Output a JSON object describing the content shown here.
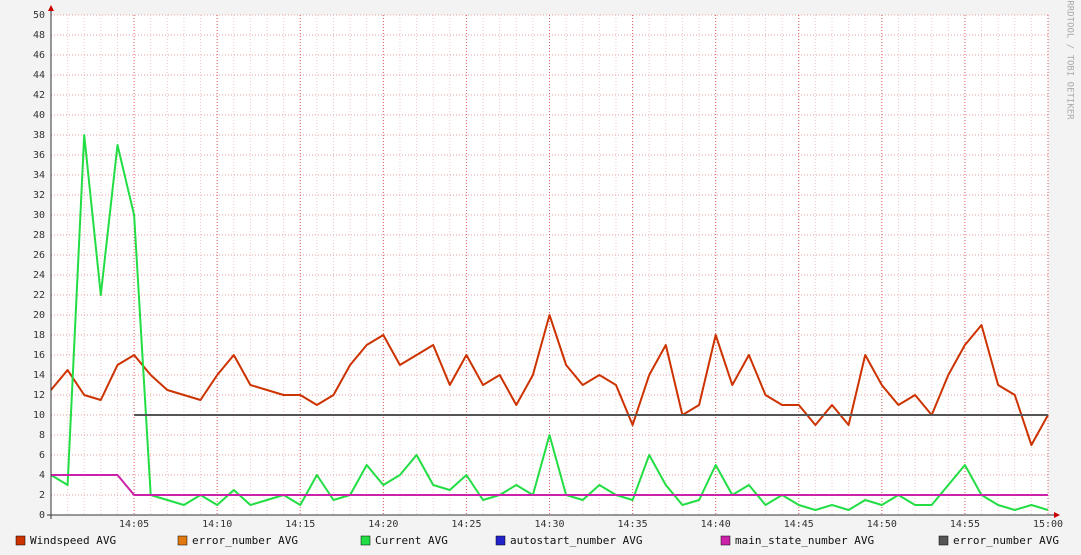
{
  "chart_data": {
    "type": "line",
    "watermark": "RRDTOOL / TOBI OETIKER",
    "x": [
      "14:00",
      "14:01",
      "14:02",
      "14:03",
      "14:04",
      "14:05",
      "14:06",
      "14:07",
      "14:08",
      "14:09",
      "14:10",
      "14:11",
      "14:12",
      "14:13",
      "14:14",
      "14:15",
      "14:16",
      "14:17",
      "14:18",
      "14:19",
      "14:20",
      "14:21",
      "14:22",
      "14:23",
      "14:24",
      "14:25",
      "14:26",
      "14:27",
      "14:28",
      "14:29",
      "14:30",
      "14:31",
      "14:32",
      "14:33",
      "14:34",
      "14:35",
      "14:36",
      "14:37",
      "14:38",
      "14:39",
      "14:40",
      "14:41",
      "14:42",
      "14:43",
      "14:44",
      "14:45",
      "14:46",
      "14:47",
      "14:48",
      "14:49",
      "14:50",
      "14:51",
      "14:52",
      "14:53",
      "14:54",
      "14:55",
      "14:56",
      "14:57",
      "14:58",
      "14:59",
      "15:00"
    ],
    "xlim": [
      "14:00",
      "15:00"
    ],
    "xticks": [
      "14:05",
      "14:10",
      "14:15",
      "14:20",
      "14:25",
      "14:30",
      "14:35",
      "14:40",
      "14:45",
      "14:50",
      "14:55",
      "15:00"
    ],
    "ylim": [
      0,
      50
    ],
    "yticks": [
      0,
      2,
      4,
      6,
      8,
      10,
      12,
      14,
      16,
      18,
      20,
      22,
      24,
      26,
      28,
      30,
      32,
      34,
      36,
      38,
      40,
      42,
      44,
      46,
      48,
      50
    ],
    "grid": true,
    "series": [
      {
        "name": "Windspeed AVG",
        "color": "#cc3300",
        "values": [
          12.5,
          14.5,
          12,
          11.5,
          15,
          16,
          14,
          12.5,
          12,
          11.5,
          14,
          16,
          13,
          12.5,
          12,
          12,
          11,
          12,
          15,
          17,
          18,
          15,
          16,
          17,
          13,
          16,
          13,
          14,
          11,
          14,
          20,
          15,
          13,
          14,
          13,
          9,
          14,
          17,
          10,
          11,
          18,
          13,
          16,
          12,
          11,
          11,
          9,
          11,
          9,
          16,
          13,
          11,
          12,
          10,
          14,
          17,
          19,
          13,
          12,
          7,
          10
        ]
      },
      {
        "name": "error_number AVG",
        "color": "#e07a10",
        "values": [
          null,
          null,
          null,
          null,
          null,
          null,
          null,
          null,
          null,
          null,
          null,
          null,
          null,
          null,
          null,
          null,
          null,
          null,
          null,
          null,
          null,
          null,
          null,
          null,
          null,
          null,
          null,
          null,
          null,
          null,
          null,
          null,
          null,
          null,
          null,
          null,
          null,
          null,
          null,
          null,
          null,
          null,
          null,
          null,
          null,
          null,
          null,
          null,
          null,
          null,
          null,
          null,
          null,
          null,
          null,
          null,
          null,
          null,
          null,
          null,
          null
        ]
      },
      {
        "name": "Current AVG",
        "color": "#22dd44",
        "values": [
          4,
          3,
          38,
          22,
          37,
          30,
          2,
          1.5,
          1,
          2,
          1,
          2.5,
          1,
          1.5,
          2,
          1,
          4,
          1.5,
          2,
          5,
          3,
          4,
          6,
          3,
          2.5,
          4,
          1.5,
          2,
          3,
          2,
          8,
          2,
          1.5,
          3,
          2,
          1.5,
          6,
          3,
          1,
          1.5,
          5,
          2,
          3,
          1,
          2,
          1,
          0.5,
          1,
          0.5,
          1.5,
          1,
          2,
          1,
          1,
          3,
          5,
          2,
          1,
          0.5,
          1,
          0.5
        ]
      },
      {
        "name": "autostart_number AVG",
        "color": "#2222cc",
        "values": [
          null,
          null,
          null,
          null,
          null,
          null,
          null,
          null,
          null,
          null,
          null,
          null,
          null,
          null,
          null,
          null,
          null,
          null,
          null,
          null,
          null,
          null,
          null,
          null,
          null,
          null,
          null,
          null,
          null,
          null,
          null,
          null,
          null,
          null,
          null,
          null,
          null,
          null,
          null,
          null,
          null,
          null,
          null,
          null,
          null,
          null,
          null,
          null,
          null,
          null,
          null,
          null,
          null,
          null,
          null,
          null,
          null,
          null,
          null,
          null,
          null
        ]
      },
      {
        "name": "main_state_number AVG",
        "color": "#cc22aa",
        "values": [
          4,
          4,
          4,
          4,
          4,
          2,
          2,
          2,
          2,
          2,
          2,
          2,
          2,
          2,
          2,
          2,
          2,
          2,
          2,
          2,
          2,
          2,
          2,
          2,
          2,
          2,
          2,
          2,
          2,
          2,
          2,
          2,
          2,
          2,
          2,
          2,
          2,
          2,
          2,
          2,
          2,
          2,
          2,
          2,
          2,
          2,
          2,
          2,
          2,
          2,
          2,
          2,
          2,
          2,
          2,
          2,
          2,
          2,
          2,
          2,
          2
        ]
      },
      {
        "name": "error_number AVG",
        "color": "#555555",
        "values": [
          null,
          null,
          null,
          null,
          null,
          10,
          10,
          10,
          10,
          10,
          10,
          10,
          10,
          10,
          10,
          10,
          10,
          10,
          10,
          10,
          10,
          10,
          10,
          10,
          10,
          10,
          10,
          10,
          10,
          10,
          10,
          10,
          10,
          10,
          10,
          10,
          10,
          10,
          10,
          10,
          10,
          10,
          10,
          10,
          10,
          10,
          10,
          10,
          10,
          10,
          10,
          10,
          10,
          10,
          10,
          10,
          10,
          10,
          10,
          10,
          10
        ]
      }
    ]
  }
}
